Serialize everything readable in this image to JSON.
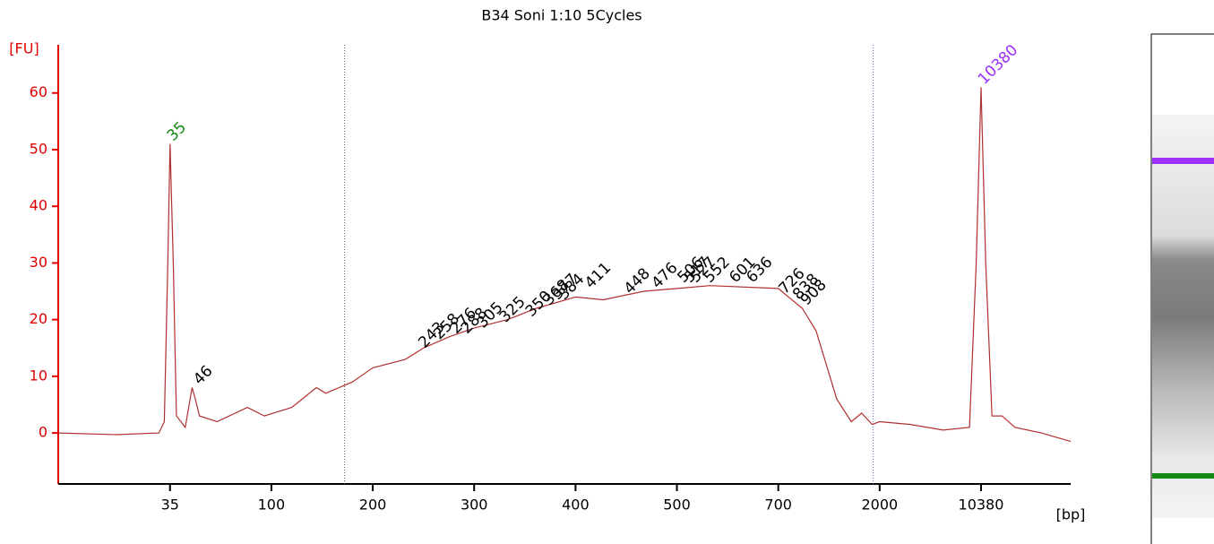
{
  "chart_data": {
    "type": "line",
    "title": "B34 Soni 1:10 5Cycles",
    "y_label": "[FU]",
    "x_label": "[bp]",
    "color": "#b03030",
    "axis_color": "#e00000",
    "x": [
      11,
      20,
      31.2,
      33,
      34.2,
      35,
      36.2,
      37.4,
      41,
      44,
      45.5,
      47.5,
      57,
      78,
      93,
      115,
      136,
      145,
      174,
      200,
      228,
      245,
      272,
      300,
      330,
      358,
      400,
      425,
      465,
      500,
      558,
      700,
      778,
      898,
      1036,
      1152,
      1282,
      1490,
      1660,
      1850,
      2000,
      3300,
      5600,
      8600,
      9600,
      10380,
      11200,
      12400,
      14600,
      18000,
      27600,
      44500
    ],
    "values": [
      0,
      -0.3,
      0,
      2,
      30,
      51,
      30,
      3,
      1,
      8,
      6,
      3,
      2,
      4.5,
      3,
      4.5,
      8,
      7,
      9,
      11.5,
      13,
      15,
      17,
      18.5,
      20,
      22,
      24,
      23.5,
      25,
      25.5,
      26,
      25.5,
      24,
      22,
      18,
      12,
      6,
      2,
      3.5,
      1.5,
      2,
      1.5,
      0.5,
      1,
      30,
      61,
      30,
      3,
      3,
      1,
      0,
      -1.5
    ],
    "xlim": [
      11,
      44500
    ],
    "xticks": [
      35,
      100,
      200,
      300,
      400,
      500,
      700,
      2000,
      10380
    ],
    "ylim": [
      -9,
      68.5
    ],
    "yticks": [
      0,
      10,
      20,
      30,
      40,
      50,
      60
    ],
    "region_limits": [
      165,
      1870
    ],
    "peaks": {
      "x": [
        35,
        46,
        243,
        258,
        276,
        288,
        305,
        325,
        350,
        368,
        377,
        384,
        411,
        448,
        476,
        506,
        517,
        527,
        552,
        601,
        636,
        726,
        838,
        908,
        10380
      ],
      "values": [
        51,
        8,
        14.5,
        16,
        17,
        17,
        18,
        19,
        20,
        22,
        23,
        23,
        25,
        24,
        25,
        26,
        26,
        26,
        26,
        26,
        26,
        24,
        23,
        22,
        61
      ],
      "colors": [
        "#138a13",
        "#000000",
        "#000000",
        "#000000",
        "#000000",
        "#000000",
        "#000000",
        "#000000",
        "#000000",
        "#000000",
        "#000000",
        "#000000",
        "#000000",
        "#000000",
        "#000000",
        "#000000",
        "#000000",
        "#000000",
        "#000000",
        "#000000",
        "#000000",
        "#000000",
        "#000000",
        "#000000",
        "#9b30ff"
      ]
    }
  }
}
